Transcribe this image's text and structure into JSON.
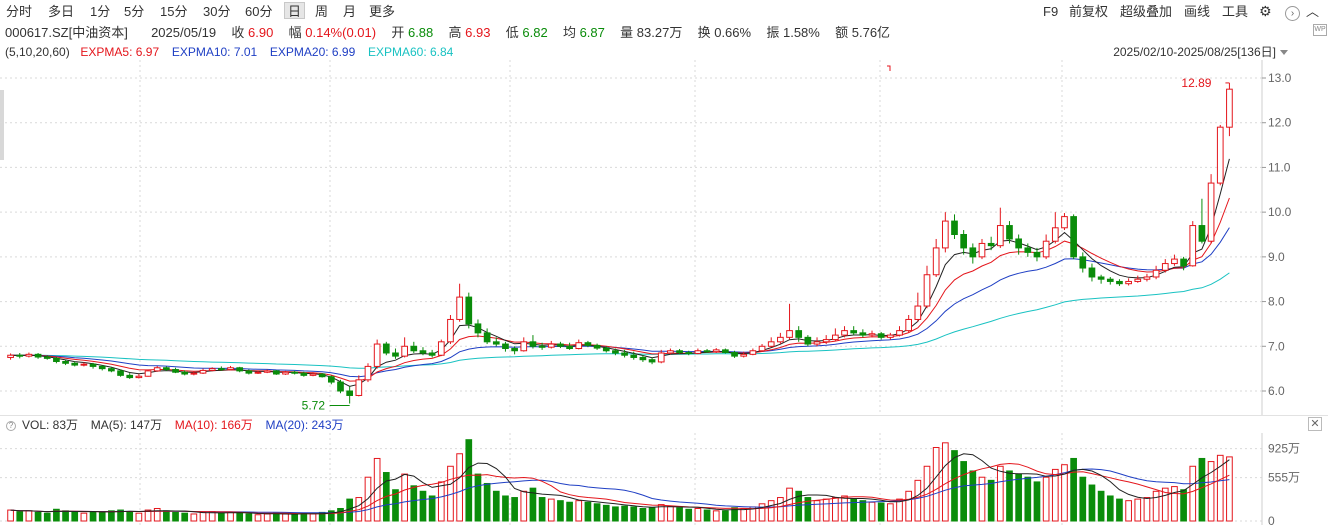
{
  "toolbar": {
    "tabs": [
      "分时",
      "多日",
      "1分",
      "5分",
      "15分",
      "30分",
      "60分",
      "日",
      "周",
      "月",
      "更多"
    ],
    "active_tab": "日",
    "right": [
      "F9",
      "前复权",
      "超级叠加",
      "画线",
      "工具"
    ],
    "wp_label": "WP"
  },
  "info": {
    "code": "000617.SZ[中油资本]",
    "date": "2025/05/19",
    "close_label": "收",
    "close": "6.90",
    "change_label": "幅",
    "change": "0.14%(0.01)",
    "open_label": "开",
    "open": "6.88",
    "high_label": "高",
    "high": "6.93",
    "low_label": "低",
    "low": "6.82",
    "avg_label": "均",
    "avg": "6.87",
    "vol_label": "量",
    "vol": "83.27万",
    "turnover_label": "换",
    "turnover": "0.66%",
    "amp_label": "振",
    "amp": "1.58%",
    "amount_label": "额",
    "amount": "5.76亿"
  },
  "ma": {
    "params": "(5,10,20,60)",
    "ma5": "EXPMA5: 6.97",
    "ma10": "EXPMA10: 7.01",
    "ma20": "EXPMA20: 6.99",
    "ma60": "EXPMA60: 6.84"
  },
  "range": "2025/02/10-2025/08/25[136日]",
  "colors": {
    "up": "#e4161c",
    "down": "#0a8c0a",
    "ma5": "#222222",
    "ma10": "#e4161c",
    "ma20": "#1f3fc4",
    "ma60": "#19c2c2",
    "grid": "#d9d9d9"
  },
  "chart_data": {
    "type": "candlestick",
    "price_axis": {
      "ylim": [
        5.6,
        13.2
      ],
      "ticks": [
        "6.0",
        "7.0",
        "8.0",
        "9.0",
        "10.0",
        "11.0",
        "12.0",
        "13.0"
      ]
    },
    "annotations": {
      "high": "12.89",
      "low": "5.72"
    },
    "volume": {
      "title": "VOL: 83万",
      "ma5": "MA(5): 147万",
      "ma10": "MA(10): 166万",
      "ma20": "MA(20): 243万",
      "ticks": [
        "925万",
        "555万",
        "0"
      ],
      "unit_max": 1100
    },
    "candles": [
      [
        6.75,
        6.8,
        6.84,
        6.7,
        140
      ],
      [
        6.8,
        6.78,
        6.85,
        6.73,
        120
      ],
      [
        6.78,
        6.82,
        6.86,
        6.75,
        130
      ],
      [
        6.82,
        6.76,
        6.85,
        6.72,
        110
      ],
      [
        6.76,
        6.73,
        6.8,
        6.7,
        100
      ],
      [
        6.73,
        6.66,
        6.76,
        6.62,
        150
      ],
      [
        6.66,
        6.62,
        6.7,
        6.58,
        130
      ],
      [
        6.62,
        6.58,
        6.66,
        6.55,
        120
      ],
      [
        6.58,
        6.6,
        6.64,
        6.55,
        100
      ],
      [
        6.6,
        6.55,
        6.63,
        6.5,
        110
      ],
      [
        6.55,
        6.5,
        6.58,
        6.46,
        120
      ],
      [
        6.5,
        6.45,
        6.54,
        6.42,
        130
      ],
      [
        6.45,
        6.35,
        6.48,
        6.32,
        140
      ],
      [
        6.35,
        6.3,
        6.4,
        6.27,
        120
      ],
      [
        6.3,
        6.33,
        6.38,
        6.28,
        100
      ],
      [
        6.33,
        6.45,
        6.48,
        6.32,
        140
      ],
      [
        6.45,
        6.52,
        6.56,
        6.43,
        160
      ],
      [
        6.52,
        6.48,
        6.55,
        6.45,
        130
      ],
      [
        6.48,
        6.42,
        6.52,
        6.4,
        110
      ],
      [
        6.42,
        6.38,
        6.46,
        6.35,
        100
      ],
      [
        6.38,
        6.4,
        6.44,
        6.35,
        90
      ],
      [
        6.4,
        6.46,
        6.5,
        6.38,
        110
      ],
      [
        6.46,
        6.5,
        6.53,
        6.44,
        120
      ],
      [
        6.5,
        6.48,
        6.55,
        6.45,
        100
      ],
      [
        6.48,
        6.52,
        6.56,
        6.46,
        110
      ],
      [
        6.52,
        6.45,
        6.54,
        6.42,
        100
      ],
      [
        6.45,
        6.4,
        6.48,
        6.37,
        90
      ],
      [
        6.4,
        6.42,
        6.46,
        6.38,
        80
      ],
      [
        6.42,
        6.45,
        6.48,
        6.4,
        90
      ],
      [
        6.45,
        6.38,
        6.47,
        6.36,
        100
      ],
      [
        6.38,
        6.42,
        6.45,
        6.36,
        90
      ],
      [
        6.42,
        6.4,
        6.45,
        6.37,
        80
      ],
      [
        6.4,
        6.35,
        6.43,
        6.32,
        100
      ],
      [
        6.35,
        6.38,
        6.42,
        6.33,
        90
      ],
      [
        6.38,
        6.32,
        6.4,
        6.3,
        110
      ],
      [
        6.32,
        6.2,
        6.35,
        6.15,
        130
      ],
      [
        6.2,
        6.0,
        6.25,
        5.95,
        160
      ],
      [
        6.0,
        5.9,
        6.1,
        5.72,
        280
      ],
      [
        5.9,
        6.25,
        6.35,
        5.88,
        300
      ],
      [
        6.25,
        6.55,
        6.62,
        6.2,
        560
      ],
      [
        6.55,
        7.05,
        7.15,
        6.5,
        800
      ],
      [
        7.05,
        6.85,
        7.1,
        6.8,
        620
      ],
      [
        6.85,
        6.78,
        6.95,
        6.72,
        400
      ],
      [
        6.78,
        7.0,
        7.2,
        6.75,
        600
      ],
      [
        7.0,
        6.9,
        7.1,
        6.85,
        450
      ],
      [
        6.9,
        6.85,
        6.98,
        6.8,
        380
      ],
      [
        6.85,
        6.8,
        6.92,
        6.75,
        320
      ],
      [
        6.8,
        7.1,
        7.15,
        6.78,
        500
      ],
      [
        7.1,
        7.6,
        7.7,
        7.05,
        700
      ],
      [
        7.6,
        8.1,
        8.4,
        7.55,
        860
      ],
      [
        8.1,
        7.5,
        8.2,
        7.4,
        1040
      ],
      [
        7.5,
        7.3,
        7.6,
        7.2,
        600
      ],
      [
        7.3,
        7.1,
        7.4,
        7.05,
        480
      ],
      [
        7.1,
        7.05,
        7.2,
        7.0,
        380
      ],
      [
        7.05,
        6.95,
        7.1,
        6.88,
        320
      ],
      [
        6.95,
        6.9,
        7.0,
        6.82,
        300
      ],
      [
        6.9,
        7.1,
        7.2,
        6.88,
        380
      ],
      [
        7.1,
        7.0,
        7.25,
        6.95,
        420
      ],
      [
        7.0,
        6.98,
        7.08,
        6.92,
        300
      ],
      [
        6.98,
        7.05,
        7.12,
        6.95,
        280
      ],
      [
        7.05,
        7.0,
        7.1,
        6.96,
        260
      ],
      [
        7.0,
        6.95,
        7.08,
        6.92,
        240
      ],
      [
        6.95,
        7.08,
        7.15,
        6.93,
        260
      ],
      [
        7.08,
        7.02,
        7.12,
        6.98,
        240
      ],
      [
        7.02,
        6.96,
        7.06,
        6.92,
        220
      ],
      [
        6.96,
        6.9,
        7.0,
        6.86,
        200
      ],
      [
        6.9,
        6.85,
        6.95,
        6.8,
        180
      ],
      [
        6.85,
        6.8,
        6.92,
        6.75,
        190
      ],
      [
        6.8,
        6.75,
        6.88,
        6.7,
        180
      ],
      [
        6.75,
        6.7,
        6.8,
        6.65,
        160
      ],
      [
        6.7,
        6.65,
        6.75,
        6.6,
        170
      ],
      [
        6.65,
        6.85,
        6.92,
        6.62,
        210
      ],
      [
        6.85,
        6.9,
        6.95,
        6.82,
        190
      ],
      [
        6.9,
        6.86,
        6.94,
        6.82,
        170
      ],
      [
        6.86,
        6.84,
        6.9,
        6.8,
        150
      ],
      [
        6.84,
        6.9,
        6.95,
        6.82,
        160
      ],
      [
        6.9,
        6.88,
        6.94,
        6.85,
        140
      ],
      [
        6.88,
        6.92,
        6.96,
        6.85,
        130
      ],
      [
        6.92,
        6.86,
        6.95,
        6.84,
        130
      ],
      [
        6.86,
        6.78,
        6.9,
        6.74,
        170
      ],
      [
        6.78,
        6.82,
        6.88,
        6.75,
        160
      ],
      [
        6.82,
        6.9,
        6.95,
        6.8,
        180
      ],
      [
        6.9,
        7.0,
        7.05,
        6.88,
        220
      ],
      [
        7.0,
        7.1,
        7.2,
        6.98,
        260
      ],
      [
        7.1,
        7.2,
        7.3,
        7.05,
        300
      ],
      [
        7.2,
        7.35,
        7.95,
        7.15,
        420
      ],
      [
        7.35,
        7.2,
        7.45,
        7.1,
        380
      ],
      [
        7.2,
        7.05,
        7.25,
        7.0,
        300
      ],
      [
        7.05,
        7.1,
        7.2,
        7.0,
        260
      ],
      [
        7.1,
        7.15,
        7.25,
        7.05,
        280
      ],
      [
        7.15,
        7.25,
        7.4,
        7.12,
        300
      ],
      [
        7.25,
        7.35,
        7.45,
        7.2,
        320
      ],
      [
        7.35,
        7.3,
        7.45,
        7.25,
        280
      ],
      [
        7.3,
        7.25,
        7.38,
        7.2,
        260
      ],
      [
        7.25,
        7.28,
        7.35,
        7.2,
        240
      ],
      [
        7.28,
        7.2,
        7.32,
        7.15,
        230
      ],
      [
        7.2,
        7.25,
        7.3,
        7.15,
        220
      ],
      [
        7.25,
        7.35,
        7.45,
        7.22,
        280
      ],
      [
        7.35,
        7.6,
        7.7,
        7.3,
        380
      ],
      [
        7.6,
        7.9,
        8.2,
        7.55,
        520
      ],
      [
        7.9,
        8.6,
        8.8,
        7.85,
        700
      ],
      [
        8.6,
        9.2,
        9.4,
        8.55,
        940
      ],
      [
        9.2,
        9.8,
        10.0,
        9.1,
        1000
      ],
      [
        9.8,
        9.5,
        9.95,
        9.4,
        900
      ],
      [
        9.5,
        9.2,
        9.6,
        9.05,
        760
      ],
      [
        9.2,
        9.0,
        9.3,
        8.85,
        640
      ],
      [
        9.0,
        9.3,
        9.4,
        8.95,
        560
      ],
      [
        9.3,
        9.25,
        9.45,
        9.15,
        520
      ],
      [
        9.25,
        9.7,
        10.1,
        9.2,
        700
      ],
      [
        9.7,
        9.4,
        9.8,
        9.3,
        640
      ],
      [
        9.4,
        9.2,
        9.5,
        9.05,
        600
      ],
      [
        9.2,
        9.1,
        9.3,
        9.0,
        560
      ],
      [
        9.1,
        9.0,
        9.2,
        8.9,
        500
      ],
      [
        9.0,
        9.35,
        9.5,
        8.95,
        560
      ],
      [
        9.35,
        9.65,
        10.0,
        9.3,
        660
      ],
      [
        9.65,
        9.9,
        9.98,
        9.6,
        720
      ],
      [
        9.9,
        9.0,
        9.95,
        8.95,
        800
      ],
      [
        9.0,
        8.75,
        9.1,
        8.65,
        560
      ],
      [
        8.75,
        8.55,
        8.85,
        8.45,
        460
      ],
      [
        8.55,
        8.5,
        8.6,
        8.4,
        380
      ],
      [
        8.5,
        8.45,
        8.55,
        8.38,
        320
      ],
      [
        8.45,
        8.4,
        8.5,
        8.35,
        280
      ],
      [
        8.4,
        8.45,
        8.52,
        8.36,
        260
      ],
      [
        8.45,
        8.5,
        8.58,
        8.42,
        280
      ],
      [
        8.5,
        8.55,
        8.62,
        8.45,
        300
      ],
      [
        8.55,
        8.7,
        8.8,
        8.5,
        380
      ],
      [
        8.7,
        8.85,
        8.95,
        8.65,
        420
      ],
      [
        8.85,
        8.95,
        9.05,
        8.8,
        440
      ],
      [
        8.95,
        8.8,
        9.0,
        8.7,
        400
      ],
      [
        8.8,
        9.7,
        9.8,
        8.78,
        700
      ],
      [
        9.7,
        9.35,
        10.3,
        9.3,
        800
      ],
      [
        9.35,
        10.65,
        10.85,
        9.3,
        760
      ],
      [
        10.65,
        11.9,
        11.95,
        10.6,
        840
      ],
      [
        11.9,
        12.75,
        12.89,
        11.7,
        820
      ]
    ]
  }
}
